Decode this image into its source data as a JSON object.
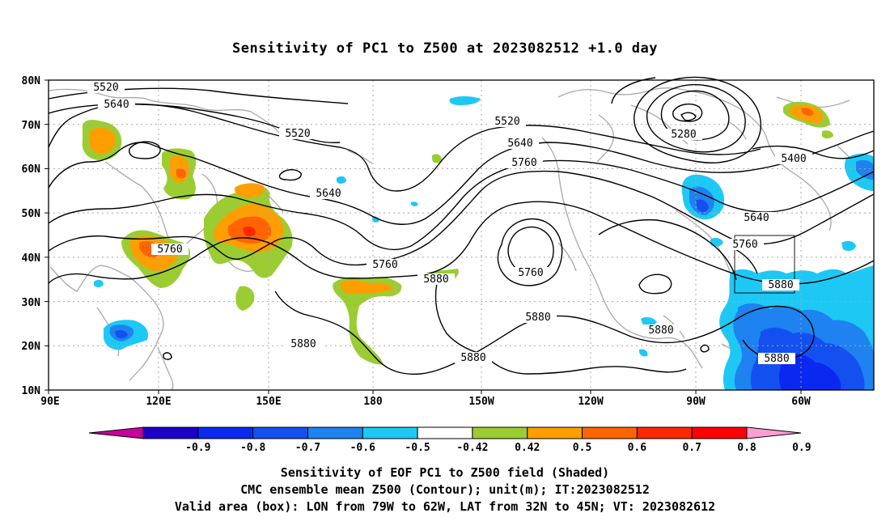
{
  "title": "Sensitivity of PC1 to Z500 at 2023082512 +1.0 day",
  "map": {
    "lat_labels": [
      "80N",
      "70N",
      "60N",
      "50N",
      "40N",
      "30N",
      "20N",
      "10N"
    ],
    "lon_labels": [
      "90E",
      "120E",
      "150E",
      "180",
      "150W",
      "120W",
      "90W",
      "60W"
    ],
    "contour_labels": [
      "5520",
      "5640",
      "5520",
      "5640",
      "5760",
      "5880",
      "5880",
      "5760",
      "5880",
      "5520",
      "5640",
      "5760",
      "5280",
      "5400",
      "5640",
      "5760",
      "5880",
      "5880",
      "5880",
      "5880",
      "5760",
      "5880"
    ],
    "valid_box": {
      "lon_from": "79W",
      "lon_to": "62W",
      "lat_from": "32N",
      "lat_to": "45N"
    }
  },
  "colorbar": {
    "labels": [
      "-0.9",
      "-0.8",
      "-0.7",
      "-0.6",
      "-0.5",
      "-0.42",
      "0.42",
      "0.5",
      "0.6",
      "0.7",
      "0.8",
      "0.9"
    ],
    "colors": [
      "#c8009c",
      "#1e00c8",
      "#0a28f0",
      "#1450f0",
      "#1e82f0",
      "#1ec8f5",
      "#ffffff",
      "#9bcd32",
      "#ff9e00",
      "#ff6400",
      "#ff2800",
      "#ff0000",
      "#ff9ed2"
    ]
  },
  "footer": {
    "line1": "Sensitivity of EOF PC1 to Z500 field (Shaded)",
    "line2": "CMC ensemble mean Z500 (Contour); unit(m); IT:2023082512",
    "line3": "Valid area (box): LON from 79W to 62W, LAT from 32N to 45N; VT: 2023082612"
  }
}
